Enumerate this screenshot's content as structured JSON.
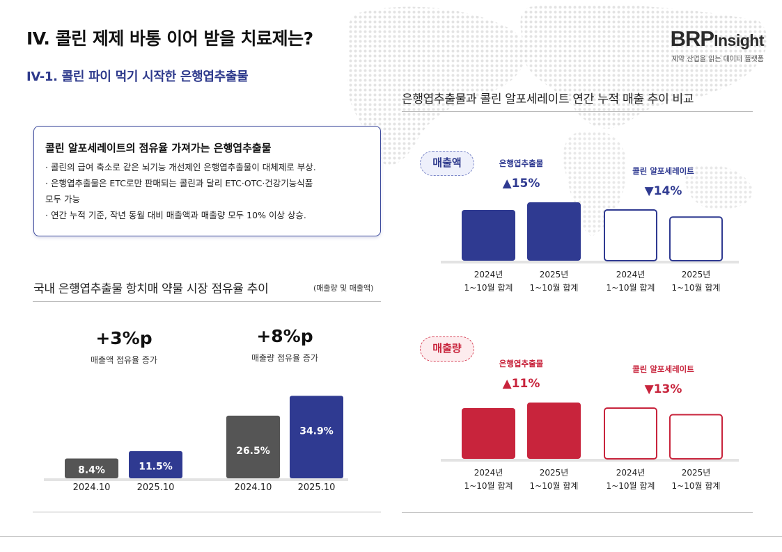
{
  "header": {
    "title": "IV. 콜린 제제 바통 이어 받을 치료제는?",
    "subtitle": "IV-1. 콜린 파이 먹기 시작한 은행엽추출물"
  },
  "brand": {
    "name_big": "BRP",
    "name_small": "Insight",
    "tagline": "제약 산업을 읽는 데이터 플랫폼"
  },
  "callout": {
    "title": "콜린 알포세레이트의 점유율 가져가는 은행엽추출물",
    "lines": [
      "· 콜린의 급여 축소로 같은 뇌기능 개선제인 은행엽추출물이 대체제로 부상.",
      "· 은행엽추출물은 ETC로만 판매되는 콜린과 달리 ETC·OTC·건강기능식품",
      "모두 가능",
      "· 연간 누적 기준, 작년 동월 대비 매출액과 매출량 모두 10% 이상 상승."
    ]
  },
  "left_section": {
    "heading": "국내 은행엽추출물 항치매 약물 시장 점유율 추이",
    "note": "(매출량 및 매출액)",
    "stats": [
      {
        "value": "+3%p",
        "caption": "매출액 점유율 증가"
      },
      {
        "value": "+8%p",
        "caption": "매출량 점유율 증가"
      }
    ]
  },
  "right_section": {
    "heading": "은행엽추출물과 콜린 알포세레이트 연간 누적 매출 추이 비교",
    "panels": [
      {
        "pill": "매출액",
        "group_labels": [
          {
            "name": "은행엽추출물",
            "change": "▲15%"
          },
          {
            "name": "콜린 알포세레이트",
            "change": "▼14%"
          }
        ]
      },
      {
        "pill": "매출량",
        "group_labels": [
          {
            "name": "은행엽추출물",
            "change": "▲11%"
          },
          {
            "name": "콜린 알포세레이트",
            "change": "▼13%"
          }
        ]
      }
    ]
  },
  "colors": {
    "navy": "#2f3a91",
    "gray": "#555555",
    "red": "#c8243c",
    "accent_text": "#2e3a8c"
  },
  "chart_data": [
    {
      "type": "bar",
      "title": "국내 은행엽추출물 항치매 약물 시장 점유율 추이",
      "groups": [
        {
          "name": "매출액",
          "categories": [
            "2024.10",
            "2025.10"
          ],
          "values": [
            8.4,
            11.5
          ],
          "labels": [
            "8.4%",
            "11.5%"
          ]
        },
        {
          "name": "매출량",
          "categories": [
            "2024.10",
            "2025.10"
          ],
          "values": [
            26.5,
            34.9
          ],
          "labels": [
            "26.5%",
            "34.9%"
          ]
        }
      ],
      "unit": "%"
    },
    {
      "type": "bar",
      "title": "매출액",
      "categories": [
        "2024년 1~10월 합계",
        "2025년 1~10월 합계"
      ],
      "series": [
        {
          "name": "은행엽추출물",
          "values": [
            100,
            115
          ]
        },
        {
          "name": "콜린 알포세레이트",
          "values": [
            100,
            86
          ]
        }
      ],
      "change": [
        "▲15%",
        "▼14%"
      ]
    },
    {
      "type": "bar",
      "title": "매출량",
      "categories": [
        "2024년 1~10월 합계",
        "2025년 1~10월 합계"
      ],
      "series": [
        {
          "name": "은행엽추출물",
          "values": [
            100,
            111
          ]
        },
        {
          "name": "콜린 알포세레이트",
          "values": [
            100,
            87
          ]
        }
      ],
      "change": [
        "▲11%",
        "▼13%"
      ]
    }
  ]
}
